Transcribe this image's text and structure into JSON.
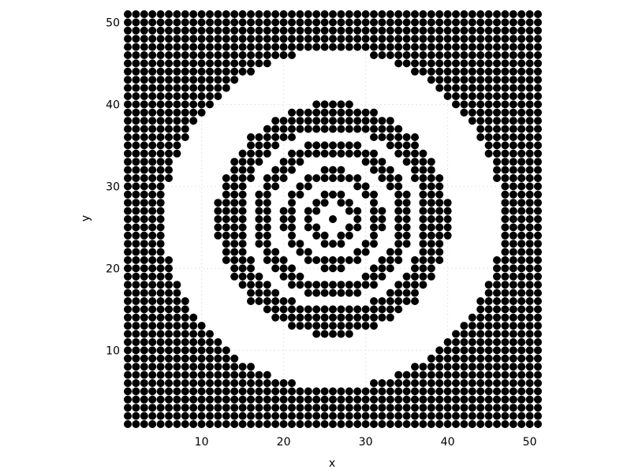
{
  "chart_data": {
    "type": "scatter",
    "title": "",
    "xlabel": "x",
    "ylabel": "y",
    "xlim": [
      1,
      51
    ],
    "ylim": [
      1,
      51
    ],
    "x_ticks": [
      10,
      20,
      30,
      40,
      50
    ],
    "y_ticks": [
      10,
      20,
      30,
      40,
      50
    ],
    "grid": true,
    "legend": "none",
    "marker_color": "#000000",
    "description": "Binary pattern on integer grid x,y in 1..51: a point is plotted where 26*sqrt(2)*distance_from_(26,26) falls in alternating bands.",
    "grid_points": {
      "x_range": [
        1,
        51
      ],
      "y_range": [
        1,
        51
      ],
      "center": [
        26,
        26
      ],
      "filled_radius_bands": [
        [
          0,
          0.5
        ],
        [
          2.2,
          3.3
        ],
        [
          4.8,
          6.2
        ],
        [
          7.7,
          9.6
        ],
        [
          11.0,
          14.2
        ],
        [
          20.5,
          100
        ]
      ]
    }
  }
}
